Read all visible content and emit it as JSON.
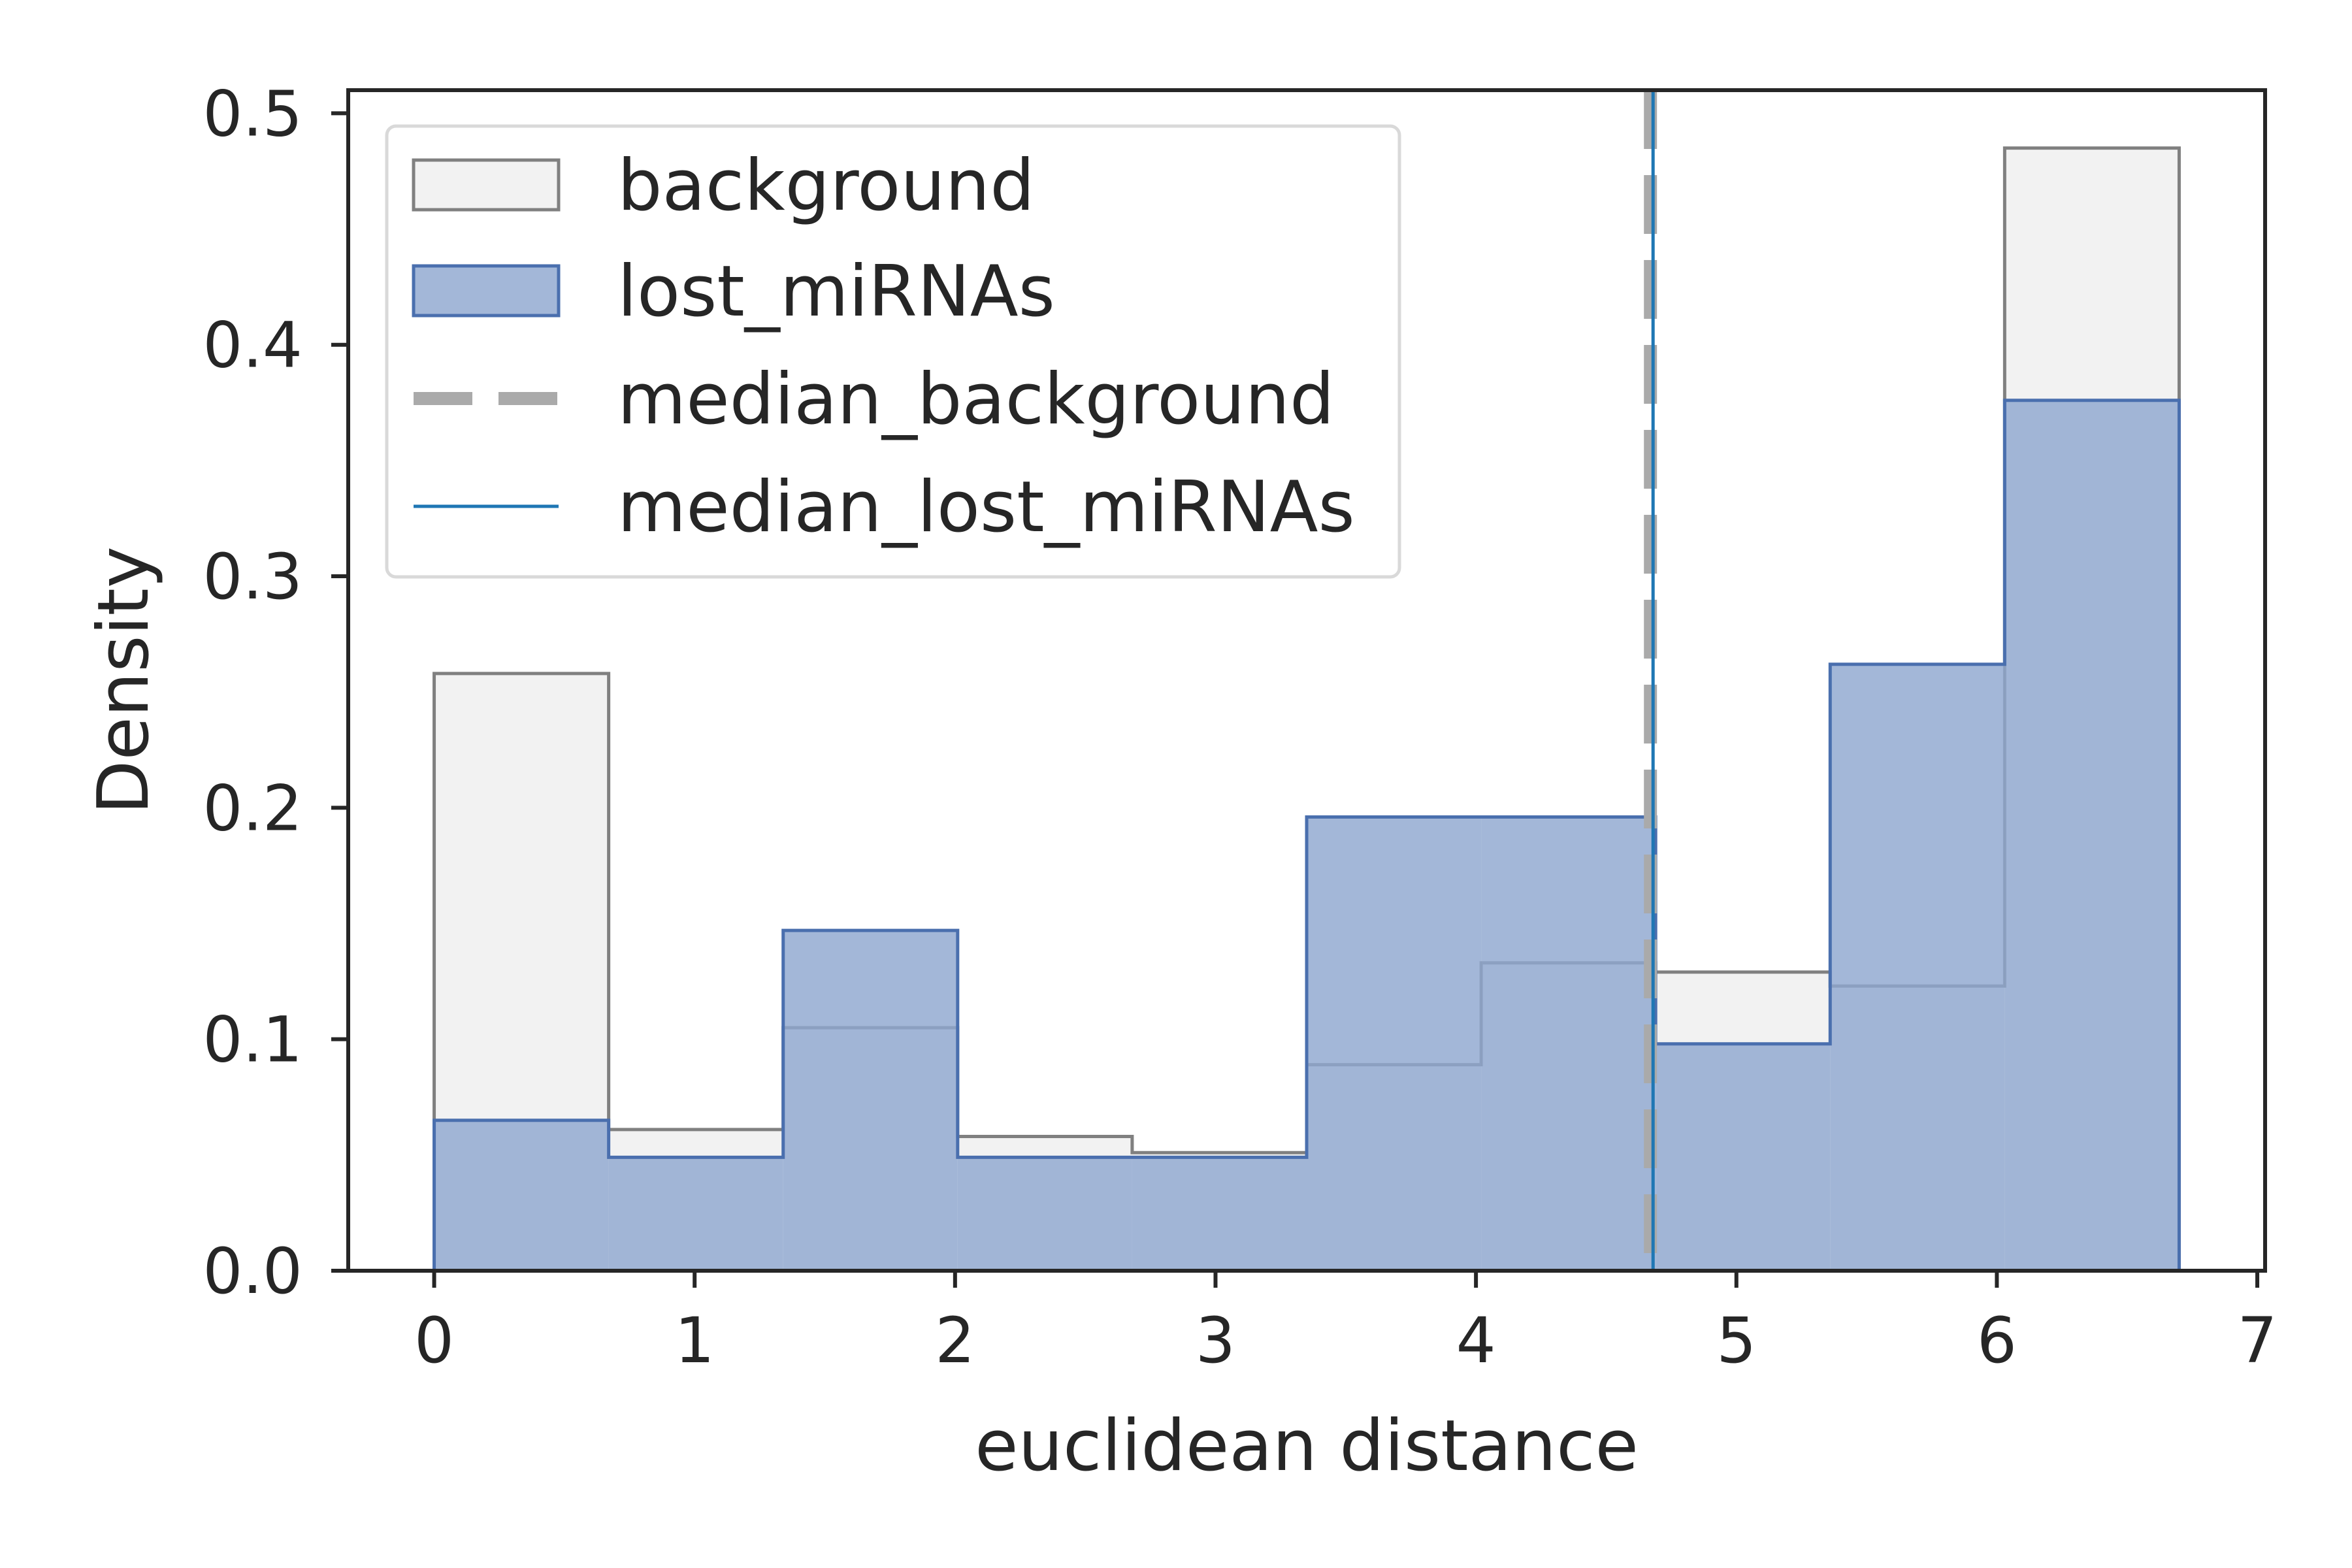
{
  "chart_data": {
    "type": "histogram",
    "title": "",
    "xlabel": "euclidean distance",
    "ylabel": "Density",
    "xlim": [
      -0.33,
      7.03
    ],
    "ylim": [
      0.0,
      0.51
    ],
    "xticks": [
      0,
      1,
      2,
      3,
      4,
      5,
      6,
      7
    ],
    "yticks": [
      0.0,
      0.1,
      0.2,
      0.3,
      0.4,
      0.5
    ],
    "xtick_labels": [
      "0",
      "1",
      "2",
      "3",
      "4",
      "5",
      "6",
      "7"
    ],
    "ytick_labels": [
      "0.0",
      "0.1",
      "0.2",
      "0.3",
      "0.4",
      "0.5"
    ],
    "bin_edges": [
      0.0,
      0.67,
      1.34,
      2.01,
      2.68,
      3.35,
      4.02,
      4.69,
      5.36,
      6.03,
      6.7
    ],
    "series": [
      {
        "name": "background",
        "values": [
          0.258,
          0.061,
          0.105,
          0.058,
          0.051,
          0.089,
          0.133,
          0.129,
          0.123,
          0.485
        ],
        "color": "#f2f2f2",
        "edge_color": "#808080"
      },
      {
        "name": "lost_miRNAs",
        "values": [
          0.065,
          0.049,
          0.147,
          0.049,
          0.049,
          0.196,
          0.196,
          0.098,
          0.262,
          0.376
        ],
        "color": "#8fa7cf",
        "edge_color": "#4a6fae"
      }
    ],
    "median_lines": [
      {
        "name": "median_background",
        "x": 4.67,
        "color": "#aaaaaa",
        "style": "dashed"
      },
      {
        "name": "median_lost_miRNAs",
        "x": 4.68,
        "color": "#1f77b4",
        "style": "solid"
      }
    ],
    "legend": {
      "position": "upper-left",
      "entries": [
        "background",
        "lost_miRNAs",
        "median_background",
        "median_lost_miRNAs"
      ]
    },
    "grid": false
  }
}
